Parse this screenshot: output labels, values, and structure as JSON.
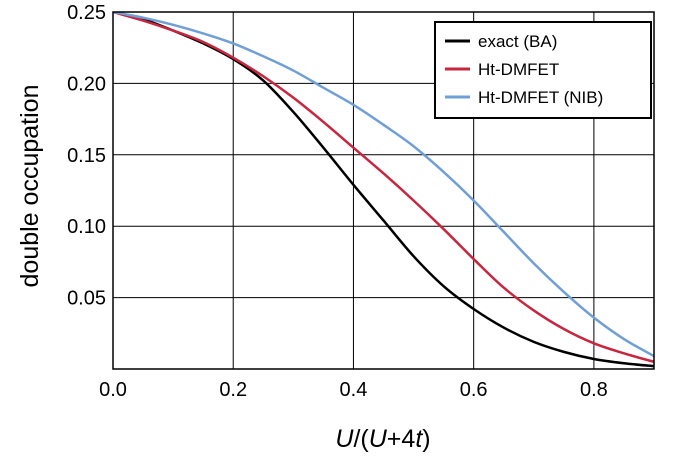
{
  "chart_data": {
    "type": "line",
    "title": "",
    "xlabel_parts": [
      "U",
      "/(",
      "U",
      "+4",
      "t",
      ")"
    ],
    "ylabel": "double occupation",
    "xlim": [
      0,
      0.9
    ],
    "ylim": [
      0,
      0.25
    ],
    "xticks": [
      0.0,
      0.2,
      0.4,
      0.6,
      0.8
    ],
    "xtick_labels": [
      "0.0",
      "0.2",
      "0.4",
      "0.6",
      "0.8"
    ],
    "yticks": [
      0.05,
      0.1,
      0.15,
      0.2,
      0.25
    ],
    "ytick_labels": [
      "0.05",
      "0.10",
      "0.15",
      "0.20",
      "0.25"
    ],
    "grid": true,
    "legend_position": "top-right",
    "x": [
      0.0,
      0.05,
      0.1,
      0.15,
      0.2,
      0.25,
      0.3,
      0.35,
      0.4,
      0.45,
      0.5,
      0.55,
      0.6,
      0.65,
      0.7,
      0.75,
      0.8,
      0.85,
      0.9
    ],
    "series": [
      {
        "name": "exact (BA)",
        "color": "#000000",
        "values": [
          0.25,
          0.245,
          0.237,
          0.228,
          0.217,
          0.202,
          0.18,
          0.155,
          0.129,
          0.104,
          0.079,
          0.058,
          0.042,
          0.029,
          0.019,
          0.012,
          0.007,
          0.004,
          0.002
        ]
      },
      {
        "name": "Ht-DMFET",
        "color": "#c8253f",
        "values": [
          0.25,
          0.244,
          0.237,
          0.229,
          0.218,
          0.205,
          0.19,
          0.173,
          0.155,
          0.137,
          0.118,
          0.098,
          0.077,
          0.057,
          0.041,
          0.028,
          0.018,
          0.011,
          0.005
        ]
      },
      {
        "name": "Ht-DMFET (NIB)",
        "color": "#6f9fd6",
        "values": [
          0.25,
          0.246,
          0.241,
          0.235,
          0.228,
          0.219,
          0.209,
          0.197,
          0.185,
          0.171,
          0.156,
          0.138,
          0.118,
          0.096,
          0.074,
          0.054,
          0.036,
          0.021,
          0.009
        ]
      }
    ]
  }
}
